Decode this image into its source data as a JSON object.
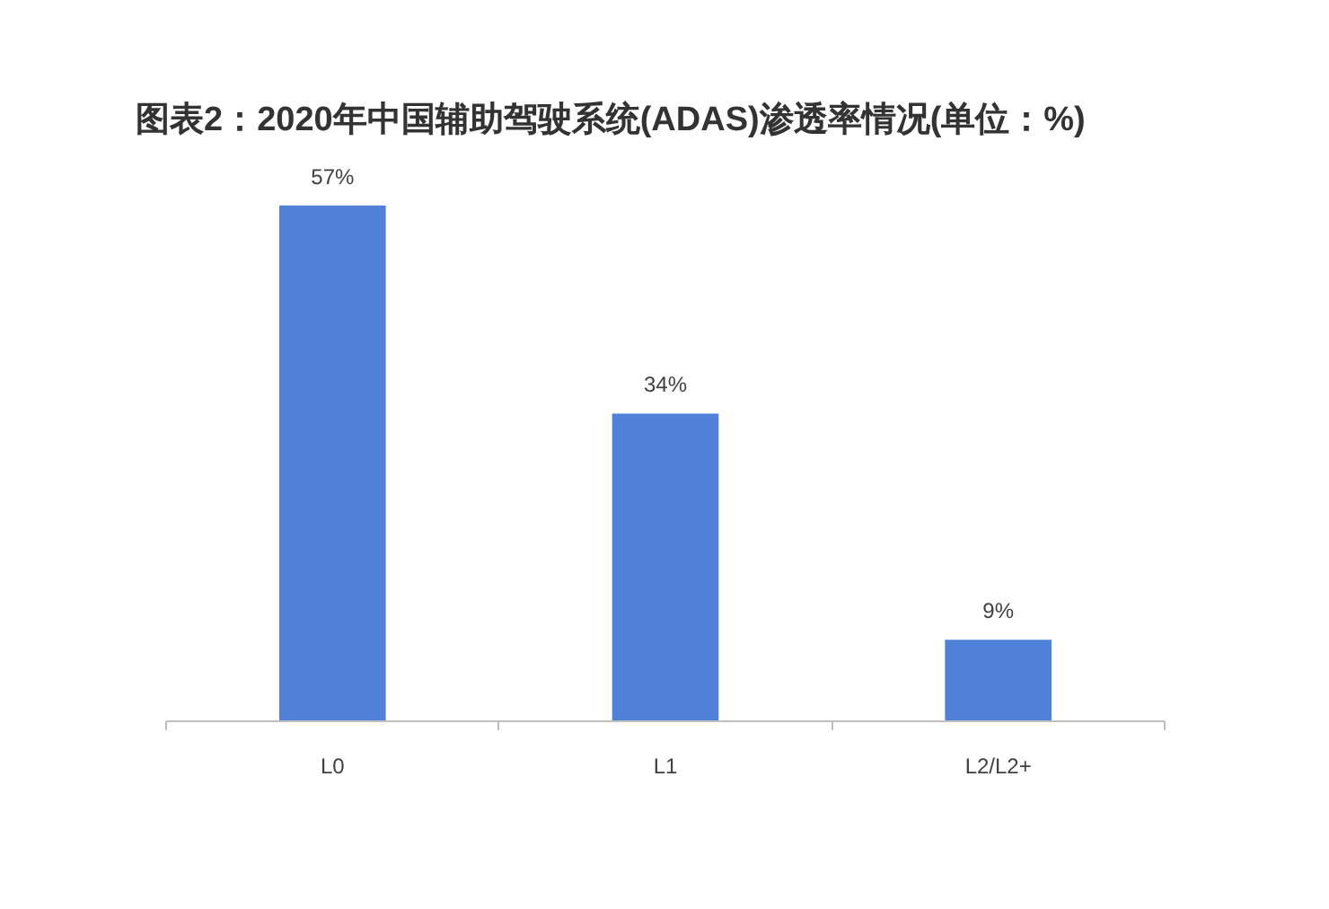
{
  "chart_data": {
    "type": "bar",
    "title": "图表2：2020年中国辅助驾驶系统(ADAS)渗透率情况(单位：%)",
    "categories": [
      "L0",
      "L1",
      "L2/L2+"
    ],
    "values": [
      57,
      34,
      9
    ],
    "color": "#4f81d9",
    "value_labels": [
      "57%",
      "34%",
      "9%"
    ],
    "tick_labels": "x"
  }
}
